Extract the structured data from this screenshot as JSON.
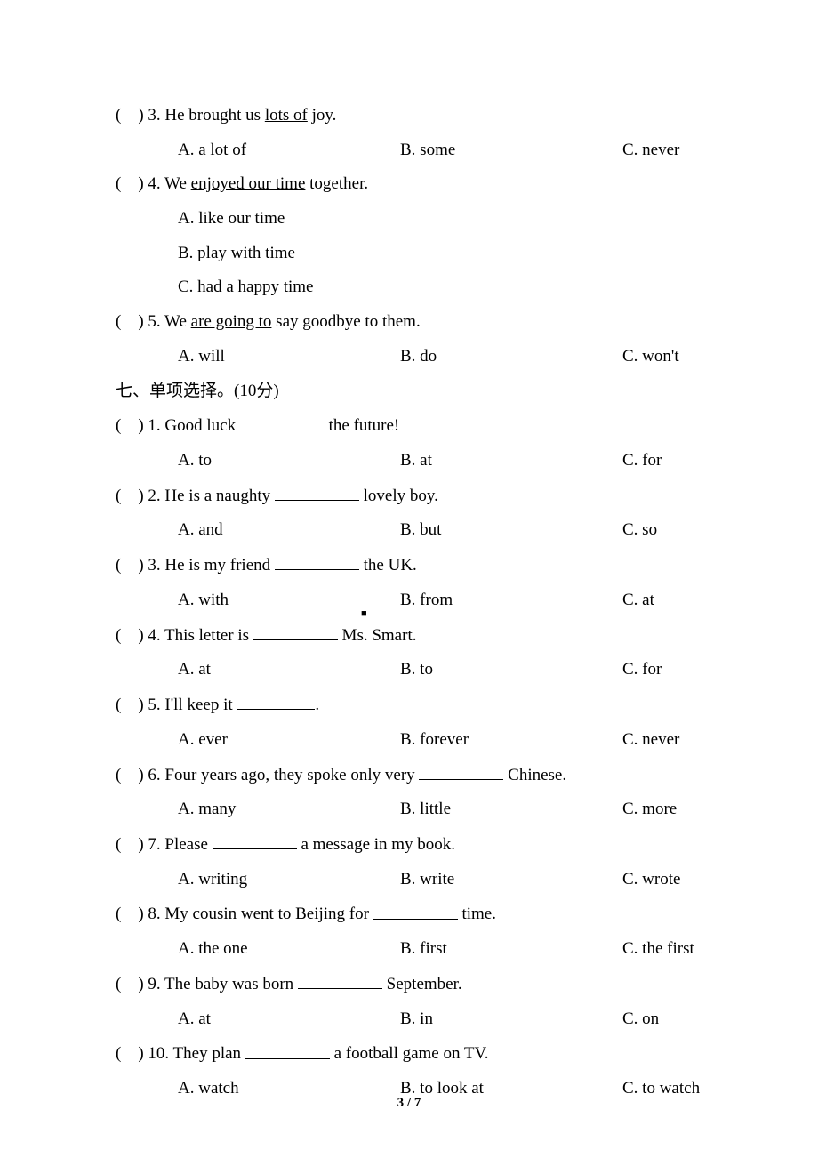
{
  "pageNumber": "3 / 7",
  "sectionSix": {
    "q3": {
      "stem_pre": "(　) 3. He brought us ",
      "stem_udl": "lots of",
      "stem_post": " joy.",
      "a": "A. a lot of",
      "b": "B. some",
      "c": "C. never"
    },
    "q4": {
      "stem_pre": "(　) 4. We ",
      "stem_udl": "enjoyed our time",
      "stem_post": " together.",
      "a": "A. like our time",
      "b": "B. play with time",
      "c": "C. had a happy time"
    },
    "q5": {
      "stem_pre": "(　) 5. We ",
      "stem_udl": "are going to",
      "stem_post": " say goodbye to them.",
      "a": "A. will",
      "b": "B. do",
      "c": "C. won't"
    }
  },
  "sectionSeven": {
    "title": "七、单项选择。(10分)",
    "q1": {
      "pre": "(　) 1. Good luck ",
      "post": " the future!",
      "a": "A. to",
      "b": "B. at",
      "c": "C. for"
    },
    "q2": {
      "pre": "(　) 2. He is a naughty ",
      "post": " lovely boy.",
      "a": "A. and",
      "b": "B. but",
      "c": "C. so"
    },
    "q3": {
      "pre": "(　) 3. He is my friend ",
      "post": " the UK.",
      "a": "A. with",
      "b": "B. from",
      "c": "C. at"
    },
    "q4": {
      "pre": "(　) 4. This letter is ",
      "post": " Ms. Smart.",
      "a": "A. at",
      "b": "B. to",
      "c": "C. for"
    },
    "q5": {
      "pre": "(　) 5. I'll keep it ",
      "post": ".",
      "a": "A. ever",
      "b": "B. forever",
      "c": "C. never"
    },
    "q6": {
      "pre": "(　) 6. Four years ago, they spoke only very ",
      "post": " Chinese.",
      "a": "A. many",
      "b": "B. little",
      "c": "C. more"
    },
    "q7": {
      "pre": "(　) 7. Please ",
      "post": " a message in my book.",
      "a": "A. writing",
      "b": "B. write",
      "c": "C. wrote"
    },
    "q8": {
      "pre": "(　) 8. My cousin went to Beijing for ",
      "post": " time.",
      "a": "A. the one",
      "b": "B. first",
      "c": "C. the first"
    },
    "q9": {
      "pre": "(　) 9. The baby was born ",
      "post": " September.",
      "a": "A. at",
      "b": "B. in",
      "c": "C. on"
    },
    "q10": {
      "pre": "(　) 10. They plan ",
      "post": " a football game on TV.",
      "a": "A. watch",
      "b": "B. to look at",
      "c": "C. to watch"
    }
  }
}
